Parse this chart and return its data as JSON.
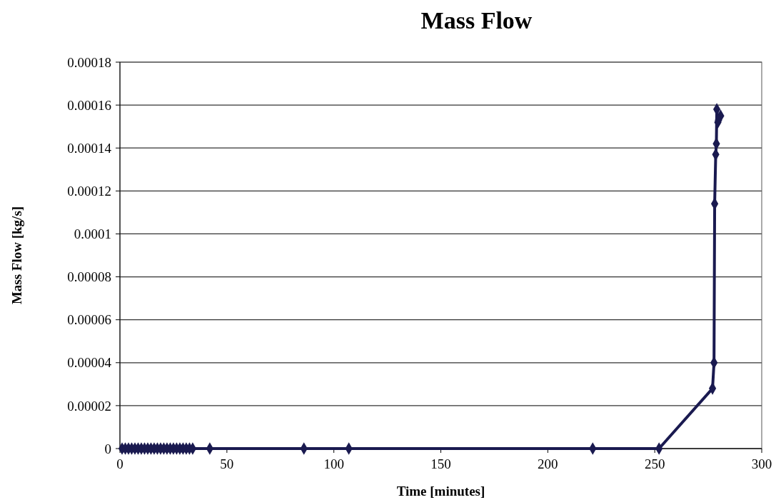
{
  "chart_data": {
    "type": "line",
    "title": "Mass Flow",
    "xlabel": "Time [minutes]",
    "ylabel": "Mass Flow [kg/s]",
    "xlim": [
      0,
      300
    ],
    "xticks": [
      0,
      50,
      100,
      150,
      200,
      250,
      300
    ],
    "ylim": [
      0,
      0.00018
    ],
    "yticks": [
      0,
      {
        "value": 2e-05,
        "label": "0.00002"
      },
      {
        "value": 4e-05,
        "label": "0.00004"
      },
      {
        "value": 6e-05,
        "label": "0.00006"
      },
      {
        "value": 8e-05,
        "label": "0.00008"
      },
      0.0001,
      0.00012,
      0.00014,
      0.00016,
      0.00018
    ],
    "grid": "y",
    "marker": "diamond",
    "line_style": "solid",
    "series": [
      {
        "color": "#1a1a50",
        "x": [
          1,
          2.5,
          4,
          5.5,
          7,
          8.5,
          10,
          11.5,
          13,
          14.5,
          16,
          17.5,
          19,
          20.5,
          22,
          23.5,
          25,
          26.5,
          28,
          29.5,
          31,
          32.5,
          34,
          42,
          86,
          107,
          221,
          252,
          277,
          277.7,
          278,
          278.5,
          278.8,
          279,
          279.5,
          280.8,
          279.8
        ],
        "values": [
          0,
          0,
          0,
          0,
          0,
          0,
          0,
          0,
          0,
          0,
          0,
          0,
          0,
          0,
          0,
          0,
          0,
          0,
          0,
          0,
          0,
          0,
          0,
          0,
          0,
          0,
          0,
          0,
          2.8e-05,
          4e-05,
          0.000114,
          0.000137,
          0.000142,
          0.000158,
          0.000152,
          0.000155,
          0.000153
        ]
      }
    ]
  }
}
